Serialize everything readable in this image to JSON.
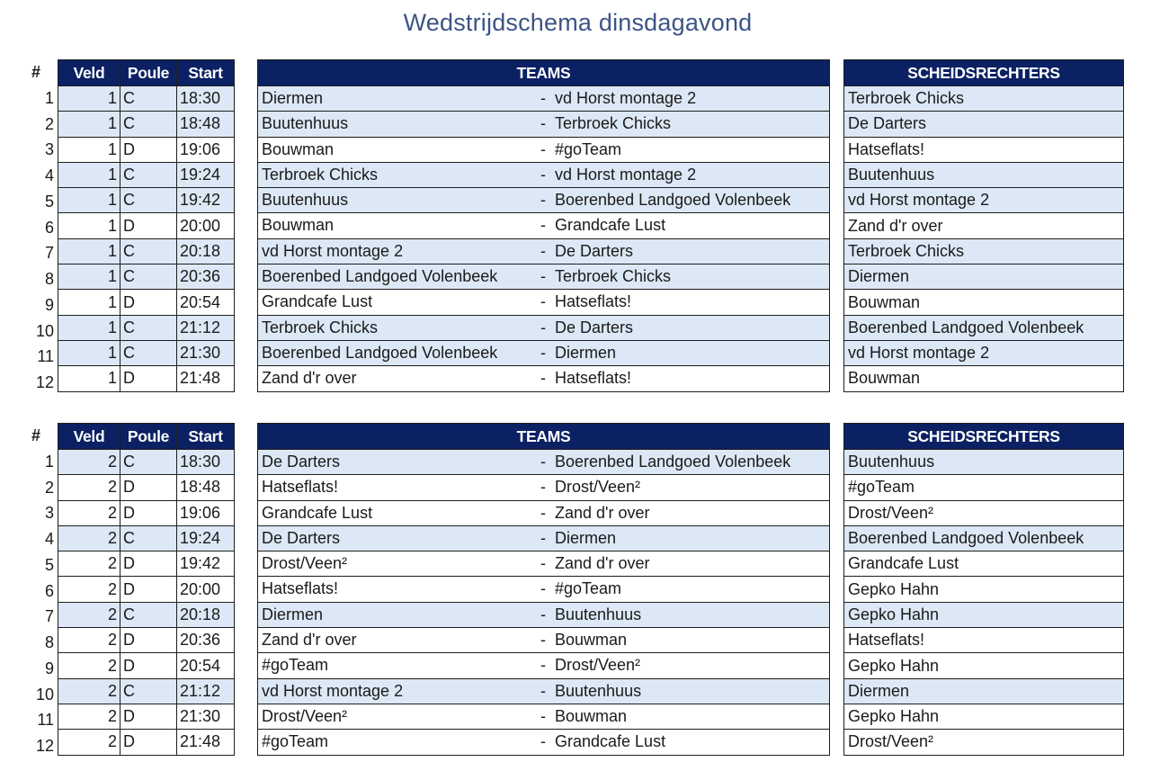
{
  "title": "Wedstrijdschema dinsdagavond",
  "colors": {
    "header_bg": "#0b2163",
    "poule_c_row_bg": "#dce8f5",
    "poule_d_row_bg": "#ffffff",
    "title_color": "#3c5485"
  },
  "headers": {
    "hash": "#",
    "veld": "Veld",
    "poule": "Poule",
    "start": "Start",
    "teams": "TEAMS",
    "referees": "SCHEIDSRECHTERS",
    "separator": "-"
  },
  "schedules": [
    {
      "rows": [
        {
          "nr": "1",
          "veld": "1",
          "poule": "C",
          "start": "18:30",
          "home": "Diermen",
          "away": "vd Horst montage 2",
          "referee": "Terbroek Chicks"
        },
        {
          "nr": "2",
          "veld": "1",
          "poule": "C",
          "start": "18:48",
          "home": "Buutenhuus",
          "away": "Terbroek Chicks",
          "referee": "De Darters"
        },
        {
          "nr": "3",
          "veld": "1",
          "poule": "D",
          "start": "19:06",
          "home": "Bouwman",
          "away": "#goTeam",
          "referee": "Hatseflats!"
        },
        {
          "nr": "4",
          "veld": "1",
          "poule": "C",
          "start": "19:24",
          "home": "Terbroek Chicks",
          "away": "vd Horst montage 2",
          "referee": "Buutenhuus"
        },
        {
          "nr": "5",
          "veld": "1",
          "poule": "C",
          "start": "19:42",
          "home": "Buutenhuus",
          "away": "Boerenbed Landgoed Volenbeek",
          "referee": "vd Horst montage 2"
        },
        {
          "nr": "6",
          "veld": "1",
          "poule": "D",
          "start": "20:00",
          "home": "Bouwman",
          "away": "Grandcafe Lust",
          "referee": "Zand d'r over"
        },
        {
          "nr": "7",
          "veld": "1",
          "poule": "C",
          "start": "20:18",
          "home": "vd Horst montage 2",
          "away": "De Darters",
          "referee": "Terbroek Chicks"
        },
        {
          "nr": "8",
          "veld": "1",
          "poule": "C",
          "start": "20:36",
          "home": "Boerenbed Landgoed Volenbeek",
          "away": "Terbroek Chicks",
          "referee": "Diermen"
        },
        {
          "nr": "9",
          "veld": "1",
          "poule": "D",
          "start": "20:54",
          "home": "Grandcafe Lust",
          "away": "Hatseflats!",
          "referee": "Bouwman"
        },
        {
          "nr": "10",
          "veld": "1",
          "poule": "C",
          "start": "21:12",
          "home": "Terbroek Chicks",
          "away": "De Darters",
          "referee": "Boerenbed Landgoed Volenbeek"
        },
        {
          "nr": "11",
          "veld": "1",
          "poule": "C",
          "start": "21:30",
          "home": "Boerenbed Landgoed Volenbeek",
          "away": "Diermen",
          "referee": "vd Horst montage 2"
        },
        {
          "nr": "12",
          "veld": "1",
          "poule": "D",
          "start": "21:48",
          "home": "Zand d'r over",
          "away": "Hatseflats!",
          "referee": "Bouwman"
        }
      ]
    },
    {
      "rows": [
        {
          "nr": "1",
          "veld": "2",
          "poule": "C",
          "start": "18:30",
          "home": "De Darters",
          "away": "Boerenbed Landgoed Volenbeek",
          "referee": "Buutenhuus"
        },
        {
          "nr": "2",
          "veld": "2",
          "poule": "D",
          "start": "18:48",
          "home": "Hatseflats!",
          "away": "Drost/Veen²",
          "referee": "#goTeam"
        },
        {
          "nr": "3",
          "veld": "2",
          "poule": "D",
          "start": "19:06",
          "home": "Grandcafe Lust",
          "away": "Zand d'r over",
          "referee": "Drost/Veen²"
        },
        {
          "nr": "4",
          "veld": "2",
          "poule": "C",
          "start": "19:24",
          "home": "De Darters",
          "away": "Diermen",
          "referee": "Boerenbed Landgoed Volenbeek"
        },
        {
          "nr": "5",
          "veld": "2",
          "poule": "D",
          "start": "19:42",
          "home": "Drost/Veen²",
          "away": "Zand d'r over",
          "referee": "Grandcafe Lust"
        },
        {
          "nr": "6",
          "veld": "2",
          "poule": "D",
          "start": "20:00",
          "home": "Hatseflats!",
          "away": "#goTeam",
          "referee": "Gepko Hahn"
        },
        {
          "nr": "7",
          "veld": "2",
          "poule": "C",
          "start": "20:18",
          "home": "Diermen",
          "away": "Buutenhuus",
          "referee": "Gepko Hahn"
        },
        {
          "nr": "8",
          "veld": "2",
          "poule": "D",
          "start": "20:36",
          "home": "Zand d'r over",
          "away": "Bouwman",
          "referee": "Hatseflats!"
        },
        {
          "nr": "9",
          "veld": "2",
          "poule": "D",
          "start": "20:54",
          "home": "#goTeam",
          "away": "Drost/Veen²",
          "referee": "Gepko Hahn"
        },
        {
          "nr": "10",
          "veld": "2",
          "poule": "C",
          "start": "21:12",
          "home": "vd Horst montage 2",
          "away": "Buutenhuus",
          "referee": "Diermen"
        },
        {
          "nr": "11",
          "veld": "2",
          "poule": "D",
          "start": "21:30",
          "home": "Drost/Veen²",
          "away": "Bouwman",
          "referee": "Gepko Hahn"
        },
        {
          "nr": "12",
          "veld": "2",
          "poule": "D",
          "start": "21:48",
          "home": "#goTeam",
          "away": "Grandcafe Lust",
          "referee": "Drost/Veen²"
        }
      ]
    }
  ]
}
